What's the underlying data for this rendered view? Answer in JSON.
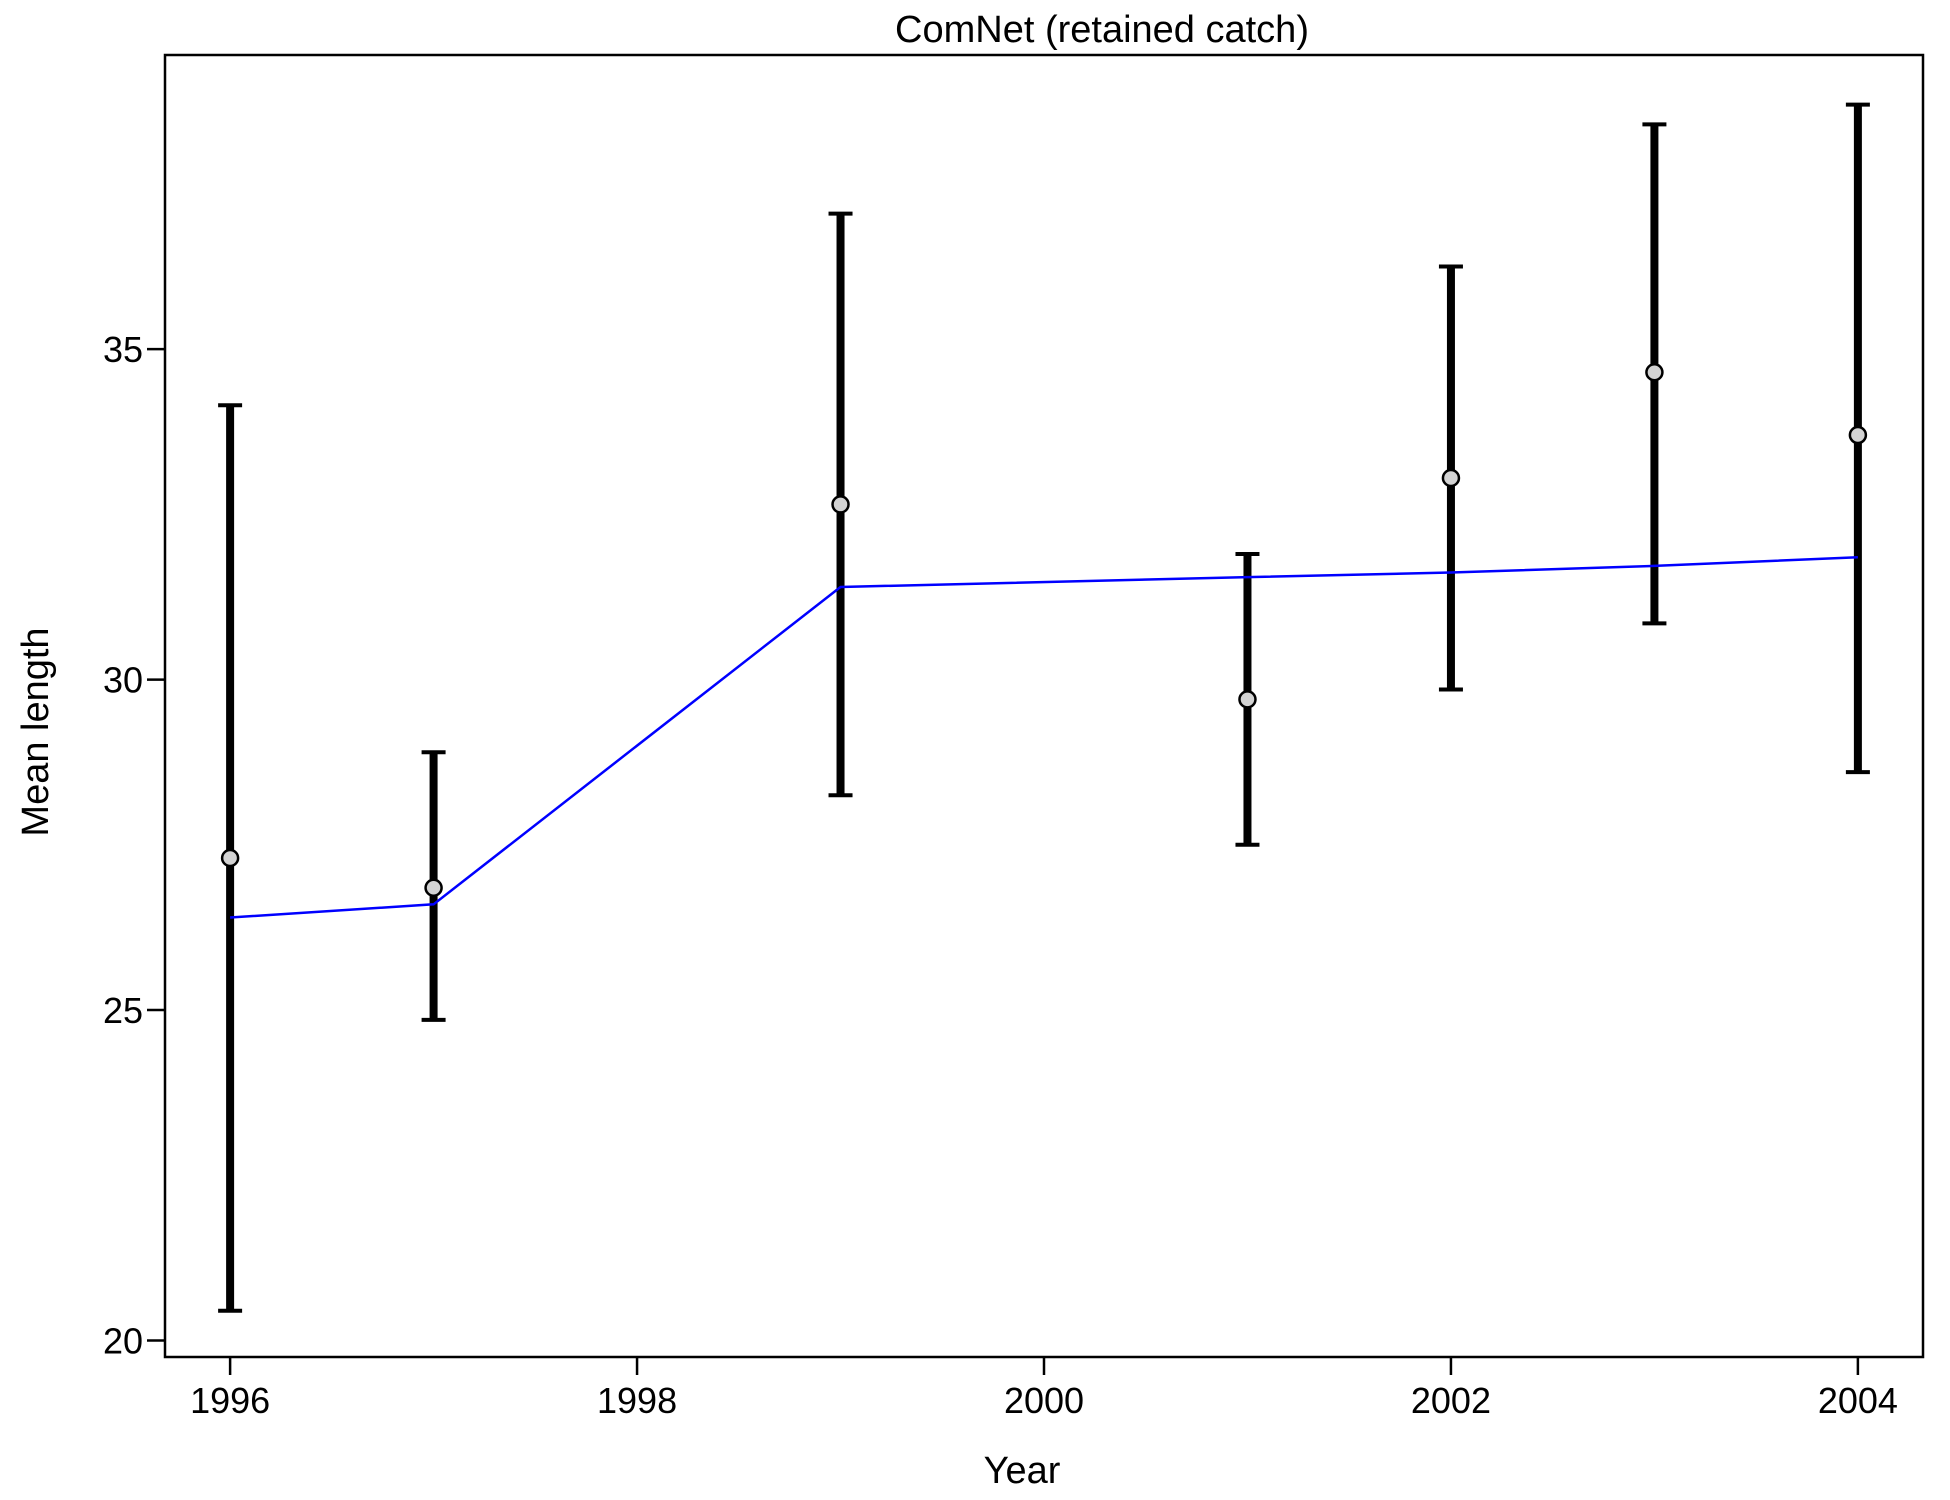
{
  "chart_data": {
    "type": "scatter",
    "title": "ComNet (retained catch)",
    "xlabel": "Year",
    "ylabel": "Mean length",
    "xlim": [
      1995.68,
      2004.32
    ],
    "ylim": [
      19.75,
      39.45
    ],
    "x_ticks": [
      {
        "value": 1996,
        "label": "1996"
      },
      {
        "value": 1998,
        "label": "1998"
      },
      {
        "value": 2000,
        "label": "2000"
      },
      {
        "value": 2002,
        "label": "2002"
      },
      {
        "value": 2004,
        "label": "2004"
      }
    ],
    "y_ticks": [
      {
        "value": 20,
        "label": "20"
      },
      {
        "value": 25,
        "label": "25"
      },
      {
        "value": 30,
        "label": "30"
      },
      {
        "value": 35,
        "label": "35"
      }
    ],
    "grid": false,
    "series": [
      {
        "kind": "points_with_error_bars",
        "color": "#000000",
        "marker_fill": "#d3d3d3",
        "points": [
          {
            "x": 1996,
            "y": 27.3,
            "lower": 20.45,
            "upper": 34.15
          },
          {
            "x": 1997,
            "y": 26.85,
            "lower": 24.85,
            "upper": 28.9
          },
          {
            "x": 1999,
            "y": 32.65,
            "lower": 28.25,
            "upper": 37.05
          },
          {
            "x": 2001,
            "y": 29.7,
            "lower": 27.5,
            "upper": 31.9
          },
          {
            "x": 2002,
            "y": 33.05,
            "lower": 29.85,
            "upper": 36.25
          },
          {
            "x": 2003,
            "y": 34.65,
            "lower": 30.85,
            "upper": 38.4
          },
          {
            "x": 2004,
            "y": 33.7,
            "lower": 28.6,
            "upper": 38.7
          }
        ]
      },
      {
        "kind": "line",
        "color": "#0000ff",
        "x": [
          1996,
          1997,
          1999,
          2001,
          2002,
          2003,
          2004
        ],
        "y": [
          26.4,
          26.6,
          31.4,
          31.55,
          31.62,
          31.72,
          31.85
        ]
      }
    ]
  }
}
